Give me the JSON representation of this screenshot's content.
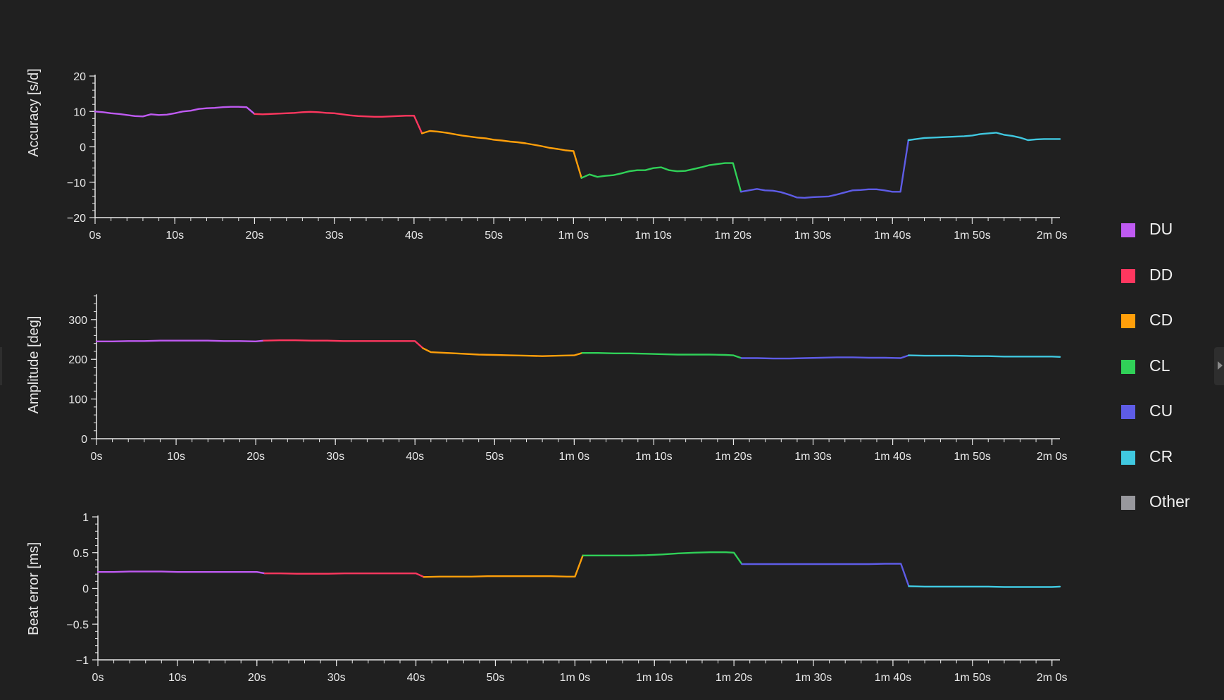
{
  "chart_data": [
    {
      "type": "line",
      "ylabel": "Accuracy [s/d]",
      "ylim": [
        -20,
        20
      ],
      "yticks": [
        20,
        10,
        0,
        -10,
        -20
      ],
      "xlim": [
        0,
        121
      ],
      "xticks": [
        {
          "t": 0,
          "label": "0s"
        },
        {
          "t": 10,
          "label": "10s"
        },
        {
          "t": 20,
          "label": "20s"
        },
        {
          "t": 30,
          "label": "30s"
        },
        {
          "t": 40,
          "label": "40s"
        },
        {
          "t": 50,
          "label": "50s"
        },
        {
          "t": 60,
          "label": "1m 0s"
        },
        {
          "t": 70,
          "label": "1m 10s"
        },
        {
          "t": 80,
          "label": "1m 20s"
        },
        {
          "t": 90,
          "label": "1m 30s"
        },
        {
          "t": 100,
          "label": "1m 40s"
        },
        {
          "t": 110,
          "label": "1m 50s"
        },
        {
          "t": 120,
          "label": "2m 0s"
        }
      ],
      "series": [
        {
          "name": "DU",
          "x": [
            0,
            1,
            2,
            3,
            4,
            5,
            6,
            7,
            8,
            9,
            10,
            11,
            12,
            13,
            14,
            15,
            16,
            17,
            18,
            19,
            20
          ],
          "y": [
            10,
            9.8,
            9.5,
            9.3,
            9.0,
            8.7,
            8.6,
            9.2,
            9.0,
            9.1,
            9.5,
            10.0,
            10.2,
            10.7,
            10.9,
            11.0,
            11.2,
            11.3,
            11.3,
            11.2,
            9.3
          ]
        },
        {
          "name": "DD",
          "x": [
            20,
            21,
            22,
            23,
            24,
            25,
            26,
            27,
            28,
            29,
            30,
            31,
            32,
            33,
            34,
            35,
            36,
            37,
            38,
            39,
            40,
            41
          ],
          "y": [
            9.3,
            9.2,
            9.3,
            9.4,
            9.5,
            9.6,
            9.8,
            9.9,
            9.8,
            9.6,
            9.5,
            9.2,
            8.9,
            8.7,
            8.6,
            8.5,
            8.5,
            8.6,
            8.7,
            8.8,
            8.8,
            3.8
          ]
        },
        {
          "name": "CD",
          "x": [
            41,
            42,
            43,
            44,
            45,
            46,
            47,
            48,
            49,
            50,
            51,
            52,
            53,
            54,
            55,
            56,
            57,
            58,
            59,
            60,
            61
          ],
          "y": [
            3.8,
            4.5,
            4.3,
            4.0,
            3.6,
            3.2,
            2.9,
            2.6,
            2.4,
            2.0,
            1.8,
            1.5,
            1.3,
            1.0,
            0.6,
            0.2,
            -0.3,
            -0.6,
            -1.0,
            -1.2,
            -8.8
          ]
        },
        {
          "name": "CL",
          "x": [
            61,
            62,
            63,
            64,
            65,
            66,
            67,
            68,
            69,
            70,
            71,
            72,
            73,
            74,
            75,
            76,
            77,
            78,
            79,
            80,
            81
          ],
          "y": [
            -8.8,
            -7.8,
            -8.5,
            -8.2,
            -8.0,
            -7.5,
            -6.9,
            -6.6,
            -6.6,
            -6.0,
            -5.8,
            -6.6,
            -6.9,
            -6.8,
            -6.3,
            -5.8,
            -5.2,
            -4.9,
            -4.6,
            -4.6,
            -12.7
          ]
        },
        {
          "name": "CU",
          "x": [
            81,
            82,
            83,
            84,
            85,
            86,
            87,
            88,
            89,
            90,
            91,
            92,
            93,
            94,
            95,
            96,
            97,
            98,
            99,
            100,
            101,
            102
          ],
          "y": [
            -12.7,
            -12.3,
            -11.9,
            -12.3,
            -12.4,
            -12.8,
            -13.5,
            -14.3,
            -14.4,
            -14.2,
            -14.1,
            -14.0,
            -13.5,
            -12.9,
            -12.3,
            -12.2,
            -12.0,
            -12.0,
            -12.3,
            -12.7,
            -12.7,
            1.9
          ]
        },
        {
          "name": "CR",
          "x": [
            102,
            103,
            104,
            105,
            106,
            107,
            108,
            109,
            110,
            111,
            112,
            113,
            114,
            115,
            116,
            117,
            118,
            119,
            120,
            121
          ],
          "y": [
            1.9,
            2.2,
            2.5,
            2.6,
            2.7,
            2.8,
            2.9,
            3.0,
            3.2,
            3.6,
            3.8,
            4.0,
            3.4,
            3.1,
            2.6,
            1.9,
            2.1,
            2.2,
            2.2,
            2.2
          ]
        }
      ]
    },
    {
      "type": "line",
      "ylabel": "Amplitude [deg]",
      "ylim": [
        0,
        360
      ],
      "yticks": [
        300,
        200,
        100,
        0
      ],
      "xlim": [
        0,
        121
      ],
      "xticks": [
        {
          "t": 0,
          "label": "0s"
        },
        {
          "t": 10,
          "label": "10s"
        },
        {
          "t": 20,
          "label": "20s"
        },
        {
          "t": 30,
          "label": "30s"
        },
        {
          "t": 40,
          "label": "40s"
        },
        {
          "t": 50,
          "label": "50s"
        },
        {
          "t": 60,
          "label": "1m 0s"
        },
        {
          "t": 70,
          "label": "1m 10s"
        },
        {
          "t": 80,
          "label": "1m 20s"
        },
        {
          "t": 90,
          "label": "1m 30s"
        },
        {
          "t": 100,
          "label": "1m 40s"
        },
        {
          "t": 110,
          "label": "1m 50s"
        },
        {
          "t": 120,
          "label": "2m 0s"
        }
      ],
      "series": [
        {
          "name": "DU",
          "x": [
            0,
            2,
            4,
            6,
            8,
            10,
            12,
            14,
            16,
            18,
            20,
            21
          ],
          "y": [
            245,
            245,
            246,
            246,
            247,
            247,
            247,
            247,
            246,
            246,
            245,
            247
          ]
        },
        {
          "name": "DD",
          "x": [
            21,
            23,
            25,
            27,
            29,
            31,
            33,
            35,
            37,
            39,
            40,
            41
          ],
          "y": [
            247,
            248,
            248,
            247,
            247,
            246,
            246,
            246,
            246,
            246,
            246,
            228
          ]
        },
        {
          "name": "CD",
          "x": [
            41,
            42,
            44,
            46,
            48,
            50,
            52,
            54,
            56,
            58,
            60,
            61
          ],
          "y": [
            228,
            218,
            216,
            214,
            212,
            211,
            210,
            209,
            208,
            209,
            210,
            216
          ]
        },
        {
          "name": "CL",
          "x": [
            61,
            63,
            65,
            67,
            69,
            71,
            73,
            75,
            77,
            79,
            80,
            81
          ],
          "y": [
            216,
            216,
            215,
            215,
            214,
            213,
            212,
            212,
            212,
            211,
            210,
            203
          ]
        },
        {
          "name": "CU",
          "x": [
            81,
            83,
            85,
            87,
            89,
            91,
            93,
            95,
            97,
            99,
            101,
            102
          ],
          "y": [
            203,
            203,
            202,
            202,
            203,
            204,
            205,
            205,
            204,
            204,
            203,
            210
          ]
        },
        {
          "name": "CR",
          "x": [
            102,
            104,
            106,
            108,
            110,
            112,
            114,
            116,
            118,
            120,
            121
          ],
          "y": [
            210,
            209,
            209,
            209,
            208,
            208,
            207,
            207,
            207,
            207,
            206
          ]
        }
      ]
    },
    {
      "type": "line",
      "ylabel": "Beat error [ms]",
      "ylim": [
        -1,
        1
      ],
      "yticks": [
        1,
        0.5,
        0,
        -0.5,
        -1
      ],
      "xlim": [
        0,
        121
      ],
      "xticks": [
        {
          "t": 0,
          "label": "0s"
        },
        {
          "t": 10,
          "label": "10s"
        },
        {
          "t": 20,
          "label": "20s"
        },
        {
          "t": 30,
          "label": "30s"
        },
        {
          "t": 40,
          "label": "40s"
        },
        {
          "t": 50,
          "label": "50s"
        },
        {
          "t": 60,
          "label": "1m 0s"
        },
        {
          "t": 70,
          "label": "1m 10s"
        },
        {
          "t": 80,
          "label": "1m 20s"
        },
        {
          "t": 90,
          "label": "1m 30s"
        },
        {
          "t": 100,
          "label": "1m 40s"
        },
        {
          "t": 110,
          "label": "1m 50s"
        },
        {
          "t": 120,
          "label": "2m 0s"
        }
      ],
      "series": [
        {
          "name": "DU",
          "x": [
            0,
            2,
            4,
            6,
            8,
            10,
            12,
            14,
            16,
            18,
            20,
            21
          ],
          "y": [
            0.23,
            0.23,
            0.235,
            0.235,
            0.235,
            0.23,
            0.23,
            0.23,
            0.23,
            0.23,
            0.23,
            0.21
          ]
        },
        {
          "name": "DD",
          "x": [
            21,
            23,
            25,
            27,
            29,
            31,
            33,
            35,
            37,
            39,
            40,
            41
          ],
          "y": [
            0.21,
            0.21,
            0.205,
            0.205,
            0.205,
            0.21,
            0.21,
            0.21,
            0.21,
            0.21,
            0.21,
            0.16
          ]
        },
        {
          "name": "CD",
          "x": [
            41,
            43,
            45,
            47,
            49,
            51,
            53,
            55,
            57,
            59,
            60,
            61
          ],
          "y": [
            0.16,
            0.165,
            0.165,
            0.165,
            0.17,
            0.17,
            0.17,
            0.17,
            0.17,
            0.165,
            0.165,
            0.46
          ]
        },
        {
          "name": "CL",
          "x": [
            61,
            63,
            65,
            67,
            69,
            71,
            73,
            75,
            77,
            79,
            80,
            81
          ],
          "y": [
            0.46,
            0.46,
            0.46,
            0.46,
            0.465,
            0.475,
            0.49,
            0.5,
            0.505,
            0.505,
            0.5,
            0.34
          ]
        },
        {
          "name": "CU",
          "x": [
            81,
            83,
            85,
            87,
            89,
            91,
            93,
            95,
            97,
            99,
            101,
            102
          ],
          "y": [
            0.34,
            0.34,
            0.34,
            0.34,
            0.34,
            0.34,
            0.34,
            0.34,
            0.34,
            0.345,
            0.345,
            0.03
          ]
        },
        {
          "name": "CR",
          "x": [
            102,
            104,
            106,
            108,
            110,
            112,
            114,
            116,
            118,
            120,
            121
          ],
          "y": [
            0.03,
            0.025,
            0.025,
            0.025,
            0.025,
            0.025,
            0.02,
            0.02,
            0.02,
            0.02,
            0.025
          ]
        }
      ]
    }
  ],
  "legend": {
    "items": [
      {
        "label": "DU",
        "color": "#bf5af2"
      },
      {
        "label": "DD",
        "color": "#ff375f"
      },
      {
        "label": "CD",
        "color": "#ff9f0a"
      },
      {
        "label": "CL",
        "color": "#30d158"
      },
      {
        "label": "CU",
        "color": "#5e5ce6"
      },
      {
        "label": "CR",
        "color": "#40c8e0"
      },
      {
        "label": "Other",
        "color": "#98989d"
      }
    ]
  },
  "colors": {
    "background": "#202020",
    "axis": "#e8e8e8"
  }
}
